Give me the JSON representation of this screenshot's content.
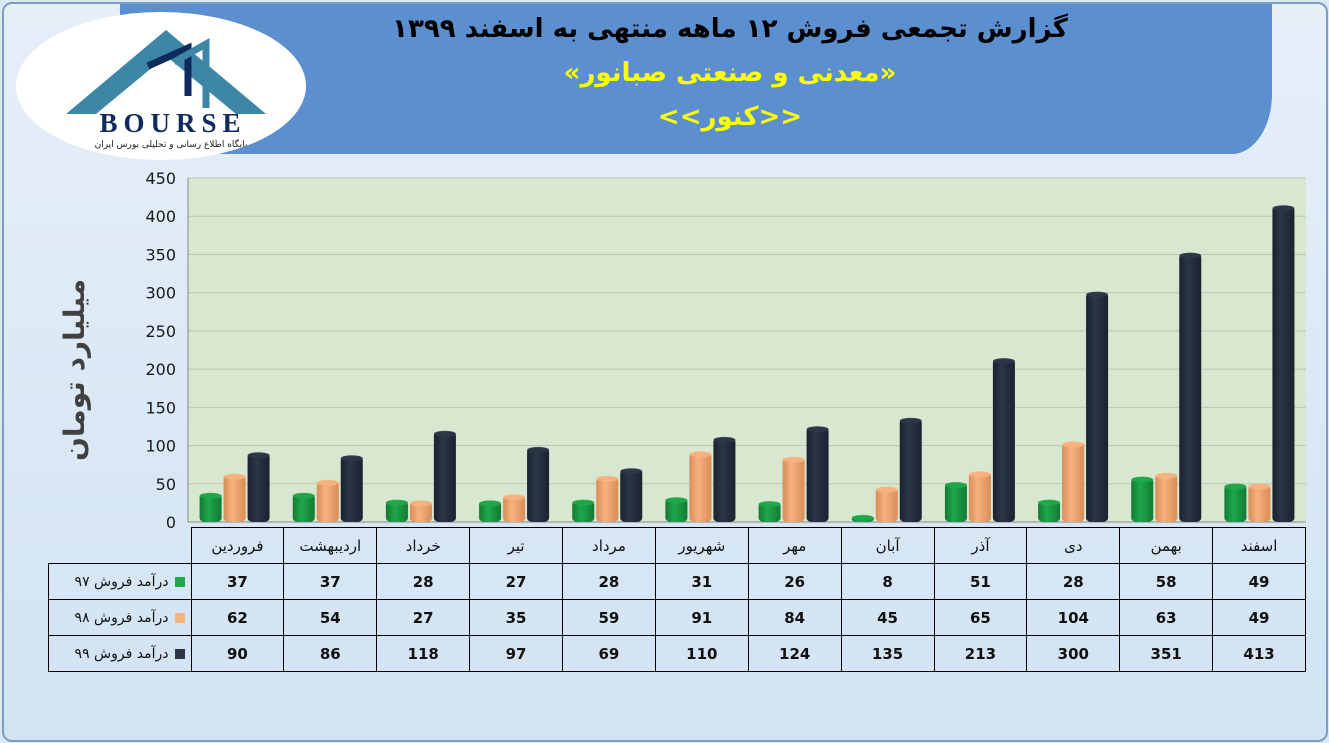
{
  "header": {
    "title": "گزارش تجمعی فروش ۱۲ ماهه منتهی به اسفند ۱۳۹۹",
    "company": "«معدنی و صنعتی صبانور»",
    "symbol": "<<کنور>>"
  },
  "logo": {
    "text": "BOURSE",
    "subtitle": "پایگاه اطلاع رسانی و تحلیلی بورس ایران"
  },
  "colors": {
    "series_97": "#1fa84a",
    "series_98": "#f7b27e",
    "series_99": "#2b3648",
    "header_band": "#5b8fd0",
    "title_accent": "#ffff00"
  },
  "chart_data": {
    "type": "bar",
    "title": "گزارش تجمعی فروش ۱۲ ماهه منتهی به اسفند ۱۳۹۹",
    "ylabel": "میلیارد تومان",
    "xlabel": "",
    "ylim": [
      0,
      450
    ],
    "yticks": [
      0,
      50,
      100,
      150,
      200,
      250,
      300,
      350,
      400,
      450
    ],
    "grid": true,
    "categories": [
      "فروردین",
      "اردیبهشت",
      "خرداد",
      "تیر",
      "مرداد",
      "شهریور",
      "مهر",
      "آبان",
      "آذر",
      "دی",
      "بهمن",
      "اسفند"
    ],
    "series": [
      {
        "name": "درآمد فروش ۹۷",
        "values": [
          37,
          37,
          28,
          27,
          28,
          31,
          26,
          8,
          51,
          28,
          58,
          49
        ]
      },
      {
        "name": "درآمد فروش ۹۸",
        "values": [
          62,
          54,
          27,
          35,
          59,
          91,
          84,
          45,
          65,
          104,
          63,
          49
        ]
      },
      {
        "name": "درآمد فروش ۹۹",
        "values": [
          90,
          86,
          118,
          97,
          69,
          110,
          124,
          135,
          213,
          300,
          351,
          413
        ]
      }
    ]
  }
}
